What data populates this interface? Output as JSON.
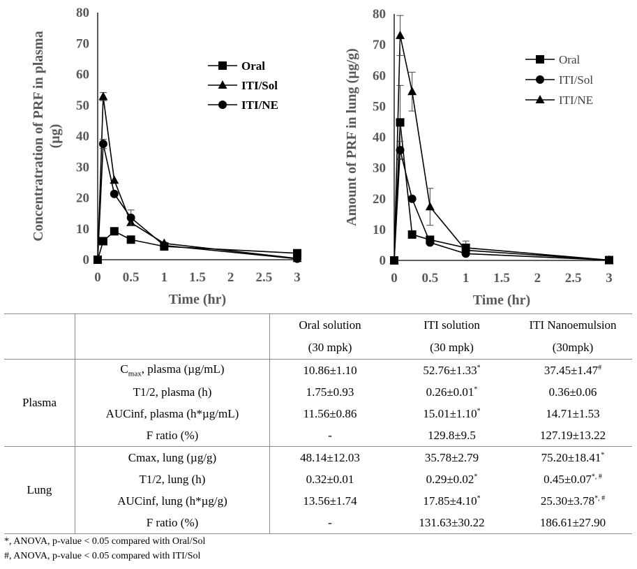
{
  "chart_data": [
    {
      "type": "line",
      "title": "",
      "xlabel": "Time (hr)",
      "ylabel": "Concentratration of PRF in plasma (µg)",
      "xlim": [
        0,
        3
      ],
      "ylim": [
        0,
        80
      ],
      "xticks": [
        "0",
        "0.5",
        "1",
        "1.5",
        "2",
        "2.5",
        "3"
      ],
      "yticks": [
        "0",
        "10",
        "20",
        "30",
        "40",
        "50",
        "60",
        "70",
        "80"
      ],
      "legend_position": "top-right",
      "series": [
        {
          "name": "Oral",
          "marker": "square",
          "x": [
            0,
            0.083,
            0.25,
            0.5,
            1,
            3
          ],
          "y": [
            0,
            6,
            9.2,
            6.5,
            4.3,
            2.1
          ],
          "err": [
            0,
            0,
            0,
            0,
            0,
            0
          ]
        },
        {
          "name": "ITI/Sol",
          "marker": "triangle",
          "x": [
            0,
            0.083,
            0.25,
            0.5,
            1,
            3
          ],
          "y": [
            0,
            52.8,
            25.7,
            12,
            5.3,
            0.4
          ],
          "err": [
            0,
            1.3,
            0,
            0,
            0,
            0
          ]
        },
        {
          "name": "ITI/NE",
          "marker": "circle",
          "x": [
            0,
            0.083,
            0.25,
            0.5,
            1,
            3
          ],
          "y": [
            0,
            37.5,
            21.3,
            13.6,
            4.6,
            0.3
          ],
          "err": [
            0,
            1.5,
            0,
            2.5,
            0,
            0
          ]
        }
      ]
    },
    {
      "type": "line",
      "title": "",
      "xlabel": "Time (hr)",
      "ylabel": "Amount of PRF in lung (µg/g)",
      "xlim": [
        0,
        3
      ],
      "ylim": [
        0,
        80
      ],
      "xticks": [
        "0",
        "0.5",
        "1",
        "1.5",
        "2",
        "2.5",
        "3"
      ],
      "yticks": [
        "0",
        "10",
        "20",
        "30",
        "40",
        "50",
        "60",
        "70",
        "80"
      ],
      "legend_position": "top-right",
      "series": [
        {
          "name": "Oral",
          "marker": "square",
          "x": [
            0,
            0.083,
            0.25,
            0.5,
            1,
            3
          ],
          "y": [
            0,
            44.8,
            8.4,
            6.7,
            4.1,
            0.1
          ],
          "err": [
            0,
            12,
            0,
            0,
            2.2,
            0
          ]
        },
        {
          "name": "ITI/Sol",
          "marker": "circle",
          "x": [
            0,
            0.083,
            0.25,
            0.5,
            1,
            3
          ],
          "y": [
            0,
            35.8,
            20,
            5.8,
            2.2,
            0.1
          ],
          "err": [
            0,
            2.8,
            0,
            0,
            0,
            0
          ]
        },
        {
          "name": "ITI/NE",
          "marker": "triangle",
          "x": [
            0,
            0.083,
            0.25,
            0.5,
            1,
            3
          ],
          "y": [
            0,
            73,
            54.8,
            17.4,
            3.3,
            0.1
          ],
          "err": [
            0,
            6.5,
            6.3,
            6,
            0,
            0
          ]
        }
      ]
    },
    {
      "type": "table",
      "columns": [
        {
          "line1": "Oral solution",
          "line2": "(30 mpk)"
        },
        {
          "line1": "ITI solution",
          "line2": "(30 mpk)"
        },
        {
          "line1": "ITI Nanoemulsion",
          "line2": "(30mpk)"
        }
      ],
      "groups": [
        {
          "name": "Plasma",
          "rows": [
            {
              "param_main": "C",
              "param_sub": "max",
              "param_rest": ", plasma (µg/mL)",
              "values": [
                {
                  "v": "10.86±1.10",
                  "s": ""
                },
                {
                  "v": "52.76±1.33",
                  "s": "*"
                },
                {
                  "v": "37.45±1.47",
                  "s": "#"
                }
              ]
            },
            {
              "param_main": "T1/2, plasma (h)",
              "param_sub": "",
              "param_rest": "",
              "values": [
                {
                  "v": "1.75±0.93",
                  "s": ""
                },
                {
                  "v": "0.26±0.01",
                  "s": "*"
                },
                {
                  "v": "0.36±0.06",
                  "s": ""
                }
              ]
            },
            {
              "param_main": "AUCinf, plasma (h*µg/mL)",
              "param_sub": "",
              "param_rest": "",
              "values": [
                {
                  "v": "11.56±0.86",
                  "s": ""
                },
                {
                  "v": "15.01±1.10",
                  "s": "*"
                },
                {
                  "v": "14.71±1.53",
                  "s": ""
                }
              ]
            },
            {
              "param_main": "F ratio (%)",
              "param_sub": "",
              "param_rest": "",
              "values": [
                {
                  "v": "-",
                  "s": ""
                },
                {
                  "v": "129.8±9.5",
                  "s": ""
                },
                {
                  "v": "127.19±13.22",
                  "s": ""
                }
              ]
            }
          ]
        },
        {
          "name": "Lung",
          "rows": [
            {
              "param_main": "Cmax, lung (µg/g)",
              "param_sub": "",
              "param_rest": "",
              "values": [
                {
                  "v": "48.14±12.03",
                  "s": ""
                },
                {
                  "v": "35.78±2.79",
                  "s": ""
                },
                {
                  "v": "75.20±18.41",
                  "s": "*"
                }
              ]
            },
            {
              "param_main": "T1/2, lung (h)",
              "param_sub": "",
              "param_rest": "",
              "values": [
                {
                  "v": "0.32±0.01",
                  "s": ""
                },
                {
                  "v": "0.29±0.02",
                  "s": "*"
                },
                {
                  "v": "0.45±0.07",
                  "s": "*, #"
                }
              ]
            },
            {
              "param_main": "AUCinf, lung (h*µg/g)",
              "param_sub": "",
              "param_rest": "",
              "values": [
                {
                  "v": "13.56±1.74",
                  "s": ""
                },
                {
                  "v": "17.85±4.10",
                  "s": "*"
                },
                {
                  "v": "25.30±3.78",
                  "s": "*, #"
                }
              ]
            },
            {
              "param_main": "F ratio (%)",
              "param_sub": "",
              "param_rest": "",
              "values": [
                {
                  "v": "-",
                  "s": ""
                },
                {
                  "v": "131.63±30.22",
                  "s": ""
                },
                {
                  "v": "186.61±27.90",
                  "s": ""
                }
              ]
            }
          ]
        }
      ],
      "footnotes": [
        {
          "mark": "*",
          "text": ", ANOVA, p-value < 0.05 compared with Oral/Sol"
        },
        {
          "mark": "#",
          "text": ", ANOVA, p-value < 0.05 compared with ITI/Sol"
        }
      ]
    }
  ]
}
